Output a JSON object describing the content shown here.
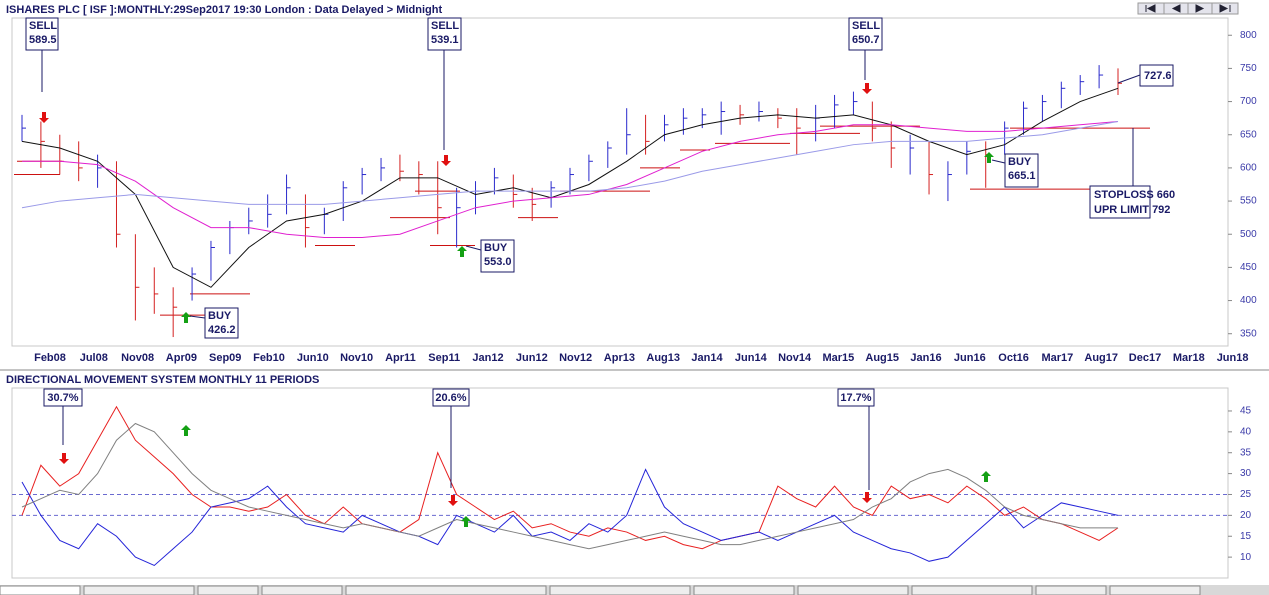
{
  "header": {
    "title": "ISHARES PLC [ ISF ]:MONTHLY:29Sep2017 19:30 London : Data Delayed > Midnight"
  },
  "chart_data": [
    {
      "type": "ohlc",
      "ylim": [
        333,
        826
      ],
      "yticks": [
        350,
        400,
        450,
        500,
        550,
        600,
        650,
        700,
        750,
        800
      ],
      "x_labels": [
        "Feb08",
        "Jul08",
        "Nov08",
        "Apr09",
        "Sep09",
        "Feb10",
        "Jun10",
        "Nov10",
        "Apr11",
        "Sep11",
        "Jan12",
        "Jun12",
        "Nov12",
        "Apr13",
        "Aug13",
        "Jan14",
        "Jun14",
        "Nov14",
        "Mar15",
        "Aug15",
        "Jan16",
        "Jun16",
        "Oct16",
        "Mar17",
        "Aug17",
        "Dec17",
        "Mar18",
        "Jun18"
      ],
      "up_color": "#2a2acc",
      "down_color": "#d42020",
      "high": [
        680,
        670,
        650,
        640,
        620,
        610,
        500,
        450,
        420,
        450,
        490,
        520,
        540,
        560,
        590,
        560,
        540,
        580,
        600,
        615,
        620,
        610,
        610,
        570,
        580,
        600,
        590,
        570,
        580,
        600,
        620,
        640,
        690,
        680,
        680,
        690,
        690,
        700,
        695,
        700,
        690,
        690,
        695,
        710,
        715,
        700,
        670,
        650,
        640,
        610,
        640,
        640,
        670,
        700,
        710,
        730,
        740,
        755,
        750
      ],
      "low": [
        640,
        600,
        590,
        580,
        570,
        480,
        370,
        380,
        345,
        400,
        430,
        470,
        500,
        510,
        530,
        480,
        500,
        520,
        560,
        580,
        580,
        560,
        500,
        480,
        530,
        560,
        540,
        520,
        540,
        560,
        580,
        600,
        620,
        620,
        640,
        650,
        660,
        650,
        665,
        670,
        660,
        620,
        640,
        660,
        680,
        640,
        600,
        590,
        560,
        550,
        590,
        570,
        620,
        650,
        670,
        690,
        710,
        720,
        710
      ],
      "close": [
        660,
        640,
        610,
        600,
        600,
        500,
        420,
        410,
        390,
        440,
        480,
        510,
        520,
        530,
        570,
        510,
        530,
        570,
        590,
        600,
        595,
        590,
        540,
        540,
        565,
        585,
        560,
        545,
        570,
        590,
        610,
        630,
        650,
        640,
        665,
        675,
        680,
        685,
        680,
        685,
        675,
        660,
        675,
        695,
        700,
        660,
        630,
        630,
        590,
        590,
        625,
        620,
        660,
        690,
        700,
        720,
        730,
        740,
        727.6
      ],
      "lines": [
        {
          "color": "#111111",
          "values": [
            640,
            630,
            610,
            560,
            450,
            420,
            480,
            520,
            530,
            550,
            585,
            585,
            560,
            570,
            555,
            575,
            610,
            650,
            665,
            675,
            680,
            675,
            680,
            665,
            640,
            620,
            635,
            670,
            700,
            720
          ]
        },
        {
          "color": "#e020d0",
          "values": [
            610,
            610,
            605,
            580,
            540,
            510,
            510,
            500,
            495,
            495,
            500,
            520,
            540,
            550,
            555,
            560,
            575,
            600,
            625,
            640,
            650,
            655,
            665,
            665,
            660,
            655,
            655,
            660,
            665,
            670
          ]
        },
        {
          "color": "#9a9ae8",
          "values": [
            540,
            550,
            555,
            560,
            555,
            550,
            545,
            545,
            545,
            550,
            555,
            560,
            565,
            565,
            565,
            565,
            570,
            580,
            595,
            605,
            615,
            625,
            635,
            640,
            640,
            640,
            645,
            650,
            660,
            670
          ]
        }
      ],
      "stop_lines": {
        "color": "#cc1111",
        "values": [
          590,
          610,
          410,
          378,
          483,
          525,
          565,
          483,
          525,
          565,
          600,
          627,
          637,
          652,
          663,
          568,
          660
        ]
      },
      "annotations": [
        {
          "signal": "SELL",
          "value": 589.5
        },
        {
          "signal": "SELL",
          "value": 539.1
        },
        {
          "signal": "SELL",
          "value": 650.7
        },
        {
          "signal": "BUY",
          "value": 426.2
        },
        {
          "signal": "BUY",
          "value": 553.0,
          "value_label": "553.0"
        },
        {
          "signal": "BUY",
          "value": 665.1
        }
      ],
      "last_price": 727.6,
      "limits": [
        {
          "label": "STOPLOSS",
          "value": 660
        },
        {
          "label": "UPR LIMIT",
          "value": 792
        }
      ]
    },
    {
      "type": "line",
      "title": "DIRECTIONAL MOVEMENT SYSTEM MONTHLY 11 PERIODS",
      "ylim": [
        5,
        50.5
      ],
      "yticks": [
        10,
        15,
        20,
        25,
        30,
        35,
        40,
        45
      ],
      "reference_lines": [
        20,
        25
      ],
      "series": [
        {
          "color": "#e82020",
          "values": [
            20,
            32,
            27,
            30,
            38,
            46,
            38,
            34,
            30,
            25,
            22,
            22,
            21,
            22,
            25,
            20,
            18,
            22,
            18,
            17,
            16,
            19,
            35,
            25,
            22,
            19,
            21,
            17,
            18,
            16,
            15,
            17,
            16,
            14,
            15,
            13,
            12,
            14,
            15,
            16,
            27,
            24,
            22,
            27,
            22,
            20,
            27,
            24,
            25,
            23,
            27,
            24,
            20,
            22,
            19,
            18,
            16,
            14,
            17
          ]
        },
        {
          "color": "#2424d8",
          "values": [
            28,
            20,
            14,
            12,
            18,
            15,
            10,
            8,
            12,
            16,
            22,
            23,
            24,
            27,
            22,
            18,
            17,
            16,
            20,
            18,
            16,
            15,
            13,
            20,
            18,
            16,
            20,
            15,
            16,
            14,
            18,
            16,
            20,
            31,
            22,
            18,
            16,
            14,
            15,
            16,
            14,
            16,
            18,
            20,
            16,
            14,
            12,
            11,
            9,
            10,
            14,
            18,
            22,
            17,
            20,
            23,
            22,
            21,
            20
          ]
        },
        {
          "color": "#808080",
          "values": [
            22,
            24,
            26,
            25,
            30,
            38,
            42,
            40,
            35,
            30,
            26,
            24,
            22,
            21,
            20,
            19,
            18,
            17,
            18,
            17,
            16,
            15,
            17,
            19,
            18,
            17,
            16,
            15,
            14,
            13,
            12,
            13,
            14,
            15,
            16,
            15,
            14,
            13,
            13,
            14,
            15,
            16,
            17,
            18,
            19,
            22,
            24,
            28,
            30,
            31,
            29,
            26,
            22,
            20,
            19,
            18,
            17,
            17,
            17
          ]
        }
      ],
      "annotations": [
        {
          "value": 30.7,
          "value_label": "30.7%"
        },
        {
          "value": 20.6,
          "value_label": "20.6%"
        },
        {
          "value": 17.7,
          "value_label": "17.7%"
        }
      ]
    }
  ]
}
